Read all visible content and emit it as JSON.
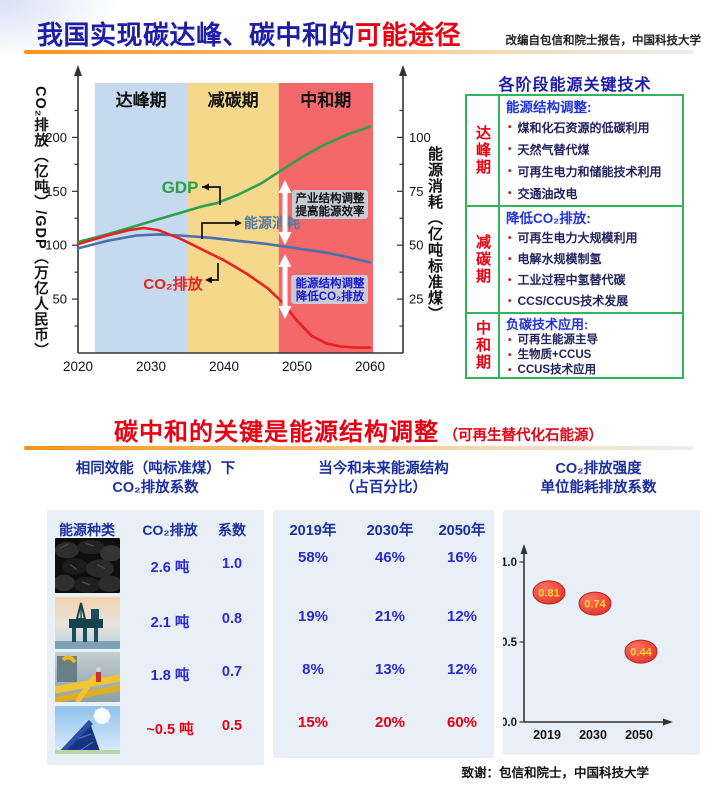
{
  "header": {
    "title_main": "我国实现碳达峰、碳中和的",
    "title_accent": "可能途径",
    "credit": "改编自包信和院士报告，中国科技大学"
  },
  "colors": {
    "accent_red": "#e60012",
    "title_navy": "#1d1da8",
    "header_blue": "#1b2f9f",
    "value_blue": "#2a2ad0",
    "tech_header_blue": "#2233dd",
    "table_border_green": "#33b45c",
    "gdp_green": "#2ca04a",
    "energy_blue": "#4a72a8",
    "co2_red": "#e8221c",
    "band_blue": "#c5d9ef",
    "band_yellow": "#f6d88c",
    "band_red": "#f4686b",
    "panel_bg": "#e9eff7"
  },
  "chart_data": [
    {
      "type": "line",
      "title": "",
      "phases": [
        {
          "label": "达峰期",
          "from": 2022.3,
          "to": 2035,
          "color": "#c5d9ef"
        },
        {
          "label": "减碳期",
          "from": 2035,
          "to": 2047.5,
          "color": "#f6d88c"
        },
        {
          "label": "中和期",
          "from": 2047.5,
          "to": 2060.4,
          "color": "#f4686b"
        }
      ],
      "left_axis": {
        "label": "CO₂排放（亿吨）/GDP（万亿人民币）",
        "ticks": [
          50,
          100,
          150,
          200
        ],
        "range": [
          0,
          240
        ]
      },
      "right_axis": {
        "label": "能源消耗（亿吨标准煤）",
        "ticks": [
          25,
          50,
          75,
          100
        ],
        "range": [
          0,
          120
        ]
      },
      "x_axis": {
        "ticks": [
          2020,
          2030,
          2040,
          2050,
          2060
        ],
        "range": [
          2020,
          2062
        ]
      },
      "series": [
        {
          "name": "GDP",
          "axis": "left",
          "color": "#2ca04a",
          "points": [
            [
              2020,
              103
            ],
            [
              2024,
              110
            ],
            [
              2028,
              118
            ],
            [
              2031,
              124
            ],
            [
              2034,
              130
            ],
            [
              2037,
              136
            ],
            [
              2039,
              139
            ],
            [
              2042,
              147
            ],
            [
              2045,
              157
            ],
            [
              2048,
              170
            ],
            [
              2051,
              183
            ],
            [
              2054,
              194
            ],
            [
              2057,
              203
            ],
            [
              2060,
              210
            ]
          ]
        },
        {
          "name": "能源消耗",
          "axis": "right",
          "color": "#4a72a8",
          "points": [
            [
              2020,
              48.5
            ],
            [
              2024,
              52
            ],
            [
              2028,
              54.5
            ],
            [
              2031,
              55
            ],
            [
              2034,
              54.5
            ],
            [
              2038,
              53.5
            ],
            [
              2042,
              52
            ],
            [
              2046,
              50.5
            ],
            [
              2050,
              48.5
            ],
            [
              2054,
              46.5
            ],
            [
              2057,
              44.5
            ],
            [
              2060,
              42
            ]
          ]
        },
        {
          "name": "CO₂排放",
          "axis": "left",
          "color": "#e8221c",
          "points": [
            [
              2020,
              101
            ],
            [
              2024,
              109
            ],
            [
              2027,
              114
            ],
            [
              2029,
              116
            ],
            [
              2031,
              114
            ],
            [
              2034,
              106
            ],
            [
              2037,
              96
            ],
            [
              2040,
              86
            ],
            [
              2043,
              74
            ],
            [
              2046,
              60
            ],
            [
              2048,
              47
            ],
            [
              2050,
              30
            ],
            [
              2052,
              16
            ],
            [
              2054,
              9
            ],
            [
              2056,
              6
            ],
            [
              2058,
              5
            ],
            [
              2060,
              5
            ]
          ]
        }
      ],
      "series_labels": {
        "gdp": "GDP",
        "energy": "能源消耗",
        "co2": "CO₂排放"
      },
      "annotations": [
        {
          "line1": "产业结构调整",
          "line2": "提高能源效率",
          "text_color": "#101010"
        },
        {
          "line1": "能源结构调整",
          "line2": "降低CO₂排放",
          "text_color": "#1717cf"
        }
      ]
    },
    {
      "type": "scatter",
      "title": "CO₂排放强度 单位能耗排放系数",
      "x_labels": [
        "2019",
        "2030",
        "2050"
      ],
      "y_ticks": [
        "1.0",
        "0.5",
        "0.0"
      ],
      "ylim": [
        0,
        1.1
      ],
      "points": [
        {
          "x": "2019",
          "y": 0.81,
          "label": "0.81"
        },
        {
          "x": "2030",
          "y": 0.74,
          "label": "0.74"
        },
        {
          "x": "2050",
          "y": 0.44,
          "label": "0.44"
        }
      ]
    }
  ],
  "key_tech": {
    "title": "各阶段能源关键技术",
    "rows": [
      {
        "phase": "达峰期",
        "header": "能源结构调整:",
        "bullets": [
          "煤和化石资源的低碳利用",
          "天然气替代煤",
          "可再生电力和储能技术利用",
          "交通油改电"
        ]
      },
      {
        "phase": "减碳期",
        "header": "降低CO₂排放:",
        "bullets": [
          "可再生电力大规模利用",
          "电解水规模制氢",
          "工业过程中氢替代碳",
          "CCS/CCUS技术发展"
        ]
      },
      {
        "phase": "中和期",
        "header": "负碳技术应用:",
        "bullets": [
          "可再生能源主导",
          "生物质+CCUS",
          "CCUS技术应用"
        ]
      }
    ]
  },
  "section2": {
    "title": "碳中和的关键是能源结构调整",
    "subtitle": "（可再生替代化石能源）"
  },
  "energy_table": {
    "heading1": "相同效能（吨标准煤）下",
    "heading2": "CO₂排放系数",
    "col_headers": [
      "能源种类",
      "CO₂排放",
      "系数"
    ],
    "rows": [
      {
        "fuel": "coal",
        "co2": "2.6 吨",
        "coef": "1.0"
      },
      {
        "fuel": "oil",
        "co2": "2.1 吨",
        "coef": "0.8"
      },
      {
        "fuel": "gas",
        "co2": "1.8 吨",
        "coef": "0.7"
      },
      {
        "fuel": "solar",
        "co2": "~0.5 吨",
        "coef": "0.5"
      }
    ]
  },
  "structure_table": {
    "heading1": "当今和未来能源结构",
    "heading2": "（占百分比）",
    "col_headers": [
      "2019年",
      "2030年",
      "2050年"
    ],
    "rows": [
      [
        "58%",
        "46%",
        "16%"
      ],
      [
        "19%",
        "21%",
        "12%"
      ],
      [
        "8%",
        "13%",
        "12%"
      ],
      [
        "15%",
        "20%",
        "60%"
      ]
    ]
  },
  "intensity": {
    "heading1": "CO₂排放强度",
    "heading2": "单位能耗排放系数"
  },
  "footer": {
    "credit": "致谢：包信和院士，中国科技大学"
  }
}
